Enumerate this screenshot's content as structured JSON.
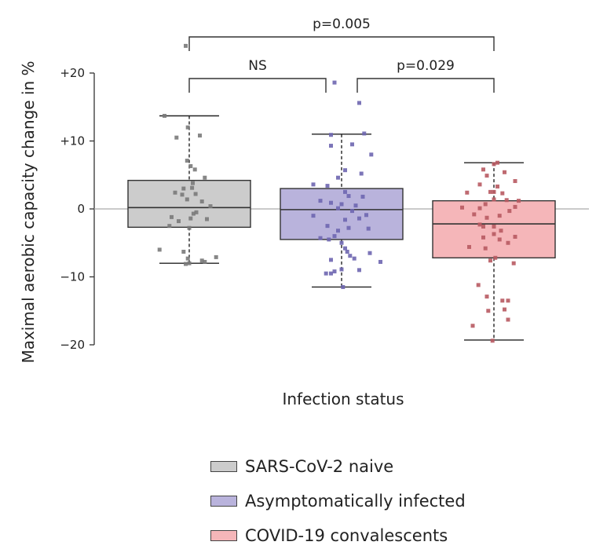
{
  "chart_data": {
    "type": "box",
    "xlabel": "Infection status",
    "ylabel": "Maximal aerobic capacity change in %",
    "ylim": [
      -20,
      20
    ],
    "yticks": [
      {
        "value": 20,
        "label": "+20"
      },
      {
        "value": 10,
        "label": "+10"
      },
      {
        "value": 0,
        "label": "0"
      },
      {
        "value": -10,
        "label": "−10"
      },
      {
        "value": -20,
        "label": "−20"
      }
    ],
    "reference_line": 0,
    "groups": [
      {
        "name": "SARS-CoV-2 naive",
        "fill": "#cccccc",
        "point_color": "#7a7a7a",
        "whisker_low": -8.0,
        "q1": -2.7,
        "median": 0.2,
        "q3": 4.2,
        "whisker_high": 13.7,
        "points": [
          {
            "x": -0.05,
            "y": 24.0
          },
          {
            "x": -0.35,
            "y": 13.7
          },
          {
            "x": -0.02,
            "y": 12.0
          },
          {
            "x": 0.15,
            "y": 10.8
          },
          {
            "x": -0.18,
            "y": 10.5
          },
          {
            "x": -0.03,
            "y": 7.1
          },
          {
            "x": 0.02,
            "y": 6.3
          },
          {
            "x": 0.08,
            "y": 5.8
          },
          {
            "x": 0.22,
            "y": 4.6
          },
          {
            "x": 0.05,
            "y": 3.8
          },
          {
            "x": -0.08,
            "y": 3.0
          },
          {
            "x": 0.04,
            "y": 3.1
          },
          {
            "x": -0.2,
            "y": 2.4
          },
          {
            "x": 0.09,
            "y": 2.2
          },
          {
            "x": -0.1,
            "y": 2.1
          },
          {
            "x": -0.03,
            "y": 1.4
          },
          {
            "x": 0.18,
            "y": 1.1
          },
          {
            "x": 0.3,
            "y": 0.4
          },
          {
            "x": 0.1,
            "y": -0.5
          },
          {
            "x": 0.06,
            "y": -0.7
          },
          {
            "x": -0.25,
            "y": -1.2
          },
          {
            "x": 0.02,
            "y": -1.4
          },
          {
            "x": 0.25,
            "y": -1.5
          },
          {
            "x": -0.15,
            "y": -1.8
          },
          {
            "x": -0.28,
            "y": -2.5
          },
          {
            "x": 0.0,
            "y": -2.8
          },
          {
            "x": -0.42,
            "y": -6.0
          },
          {
            "x": -0.08,
            "y": -6.3
          },
          {
            "x": 0.38,
            "y": -7.1
          },
          {
            "x": -0.02,
            "y": -7.3
          },
          {
            "x": 0.18,
            "y": -7.6
          },
          {
            "x": 0.22,
            "y": -7.8
          },
          {
            "x": 0.0,
            "y": -8.0
          },
          {
            "x": -0.05,
            "y": -8.1
          }
        ]
      },
      {
        "name": "Asymptomatically infected",
        "fill": "#b9b3dc",
        "point_color": "#6e66b0",
        "whisker_low": -11.5,
        "q1": -4.5,
        "median": -0.1,
        "q3": 3.0,
        "whisker_high": 11.0,
        "points": [
          {
            "x": -0.1,
            "y": 18.6
          },
          {
            "x": 0.25,
            "y": 15.6
          },
          {
            "x": 0.32,
            "y": 11.1
          },
          {
            "x": -0.15,
            "y": 10.9
          },
          {
            "x": -0.15,
            "y": 9.3
          },
          {
            "x": 0.15,
            "y": 9.5
          },
          {
            "x": 0.42,
            "y": 8.0
          },
          {
            "x": 0.05,
            "y": 5.7
          },
          {
            "x": 0.28,
            "y": 5.2
          },
          {
            "x": -0.05,
            "y": 4.6
          },
          {
            "x": -0.4,
            "y": 3.6
          },
          {
            "x": -0.2,
            "y": 3.4
          },
          {
            "x": 0.05,
            "y": 2.5
          },
          {
            "x": 0.1,
            "y": 1.9
          },
          {
            "x": 0.3,
            "y": 1.8
          },
          {
            "x": -0.3,
            "y": 1.2
          },
          {
            "x": -0.15,
            "y": 0.9
          },
          {
            "x": 0.0,
            "y": 0.7
          },
          {
            "x": 0.2,
            "y": 0.5
          },
          {
            "x": -0.05,
            "y": 0.1
          },
          {
            "x": 0.15,
            "y": -0.3
          },
          {
            "x": 0.35,
            "y": -0.9
          },
          {
            "x": -0.4,
            "y": -1.0
          },
          {
            "x": 0.05,
            "y": -1.6
          },
          {
            "x": 0.25,
            "y": -1.4
          },
          {
            "x": -0.2,
            "y": -2.5
          },
          {
            "x": 0.1,
            "y": -2.8
          },
          {
            "x": 0.38,
            "y": -2.9
          },
          {
            "x": -0.05,
            "y": -3.2
          },
          {
            "x": -0.1,
            "y": -4.0
          },
          {
            "x": -0.3,
            "y": -4.3
          },
          {
            "x": -0.18,
            "y": -4.5
          },
          {
            "x": 0.0,
            "y": -5.0
          },
          {
            "x": 0.05,
            "y": -5.8
          },
          {
            "x": 0.08,
            "y": -6.3
          },
          {
            "x": 0.4,
            "y": -6.5
          },
          {
            "x": 0.12,
            "y": -6.9
          },
          {
            "x": -0.15,
            "y": -7.5
          },
          {
            "x": 0.18,
            "y": -7.3
          },
          {
            "x": 0.55,
            "y": -7.8
          },
          {
            "x": 0.0,
            "y": -8.9
          },
          {
            "x": 0.25,
            "y": -9.0
          },
          {
            "x": -0.1,
            "y": -9.2
          },
          {
            "x": -0.22,
            "y": -9.5
          },
          {
            "x": -0.15,
            "y": -9.5
          },
          {
            "x": 0.02,
            "y": -11.5
          }
        ]
      },
      {
        "name": "COVID-19 convalescents",
        "fill": "#f5b6b9",
        "point_color": "#b85a62",
        "whisker_low": -19.3,
        "q1": -7.2,
        "median": -2.2,
        "q3": 1.2,
        "whisker_high": 6.8,
        "points": [
          {
            "x": 0.05,
            "y": 6.8
          },
          {
            "x": 0.0,
            "y": 6.6
          },
          {
            "x": -0.15,
            "y": 5.8
          },
          {
            "x": 0.15,
            "y": 5.4
          },
          {
            "x": -0.1,
            "y": 4.9
          },
          {
            "x": 0.3,
            "y": 4.1
          },
          {
            "x": -0.2,
            "y": 3.6
          },
          {
            "x": 0.05,
            "y": 3.3
          },
          {
            "x": -0.05,
            "y": 2.5
          },
          {
            "x": 0.0,
            "y": 2.5
          },
          {
            "x": -0.38,
            "y": 2.4
          },
          {
            "x": 0.12,
            "y": 2.3
          },
          {
            "x": 0.0,
            "y": 1.4
          },
          {
            "x": 0.18,
            "y": 1.3
          },
          {
            "x": 0.35,
            "y": 1.2
          },
          {
            "x": -0.12,
            "y": 0.7
          },
          {
            "x": -0.45,
            "y": 0.2
          },
          {
            "x": 0.3,
            "y": 0.3
          },
          {
            "x": -0.2,
            "y": 0.1
          },
          {
            "x": 0.22,
            "y": -0.3
          },
          {
            "x": -0.28,
            "y": -0.8
          },
          {
            "x": 0.08,
            "y": -1.0
          },
          {
            "x": -0.1,
            "y": -1.3
          },
          {
            "x": -0.2,
            "y": -2.3
          },
          {
            "x": -0.15,
            "y": -2.6
          },
          {
            "x": 0.0,
            "y": -2.6
          },
          {
            "x": 0.1,
            "y": -3.2
          },
          {
            "x": 0.0,
            "y": -3.7
          },
          {
            "x": -0.15,
            "y": -4.2
          },
          {
            "x": 0.08,
            "y": -4.5
          },
          {
            "x": 0.3,
            "y": -4.1
          },
          {
            "x": 0.2,
            "y": -5.0
          },
          {
            "x": -0.35,
            "y": -5.6
          },
          {
            "x": -0.12,
            "y": -5.8
          },
          {
            "x": 0.02,
            "y": -7.2
          },
          {
            "x": -0.05,
            "y": -7.6
          },
          {
            "x": 0.28,
            "y": -8.0
          },
          {
            "x": -0.22,
            "y": -11.2
          },
          {
            "x": -0.1,
            "y": -12.9
          },
          {
            "x": 0.12,
            "y": -13.5
          },
          {
            "x": 0.2,
            "y": -13.5
          },
          {
            "x": 0.15,
            "y": -14.8
          },
          {
            "x": -0.08,
            "y": -15.0
          },
          {
            "x": 0.2,
            "y": -16.3
          },
          {
            "x": -0.3,
            "y": -17.2
          },
          {
            "x": -0.02,
            "y": -19.4
          }
        ]
      }
    ],
    "comparisons": [
      {
        "from": 0,
        "to": 1,
        "label": "NS",
        "level": 1
      },
      {
        "from": 1,
        "to": 2,
        "label": "p=0.029",
        "level": 1
      },
      {
        "from": 0,
        "to": 2,
        "label": "p=0.005",
        "level": 2
      }
    ],
    "legend": [
      {
        "label": "SARS-CoV-2 naive",
        "color": "#cccccc"
      },
      {
        "label": "Asymptomatically infected",
        "color": "#b9b3dc"
      },
      {
        "label": "COVID-19 convalescents",
        "color": "#f5b6b9"
      }
    ],
    "legend_position": "bottom"
  }
}
